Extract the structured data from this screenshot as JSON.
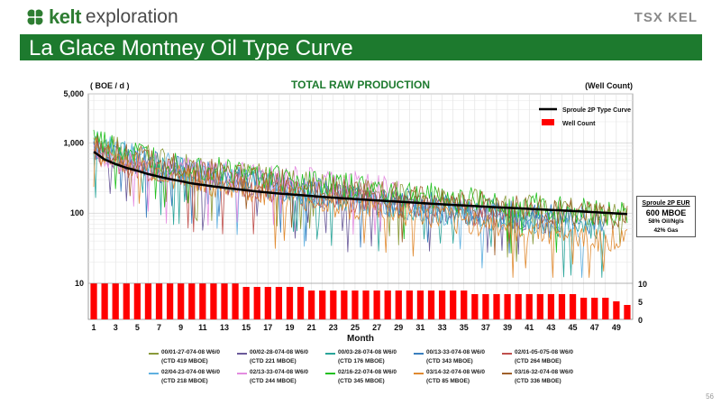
{
  "header": {
    "logo_name": "kelt",
    "logo_sub": "exploration",
    "exchange": "TSX KEL",
    "title": "La Glace Montney Oil Type Curve"
  },
  "page_number": "56",
  "colors": {
    "brand_green": "#1d7a2e",
    "type_curve": "#000000",
    "well_count": "#ff0000"
  },
  "eur_box": {
    "heading": "Sproule 2P EUR",
    "value": "600 MBOE",
    "oil": "58% Oil/Ngls",
    "gas": "42% Gas"
  },
  "legend": [
    {
      "name": "00/01-27-074-08 W6/0",
      "ctd": "(CTD 419 MBOE)",
      "color": "#8a9a3a"
    },
    {
      "name": "00/02-28-074-08 W6/0",
      "ctd": "(CTD 221 MBOE)",
      "color": "#6a5a9a"
    },
    {
      "name": "00/03-28-074-08 W6/0",
      "ctd": "(CTD 176 MBOE)",
      "color": "#2aa59a"
    },
    {
      "name": "00/13-33-074-08 W6/0",
      "ctd": "(CTD 343 MBOE)",
      "color": "#3a7fbf"
    },
    {
      "name": "02/01-05-075-08 W6/0",
      "ctd": "(CTD 264 MBOE)",
      "color": "#c0504d"
    },
    {
      "name": "02/04-23-074-08 W6/0",
      "ctd": "(CTD 218 MBOE)",
      "color": "#5fb0e0"
    },
    {
      "name": "02/13-33-074-08 W6/0",
      "ctd": "(CTD 244 MBOE)",
      "color": "#e48ce0"
    },
    {
      "name": "02/16-22-074-08 W6/0",
      "ctd": "(CTD 345 MBOE)",
      "color": "#22c020"
    },
    {
      "name": "03/14-32-074-08 W6/0",
      "ctd": "(CTD 85 MBOE)",
      "color": "#e08a30"
    },
    {
      "name": "03/16-32-074-08 W6/0",
      "ctd": "(CTD 336 MBOE)",
      "color": "#a0602a"
    }
  ],
  "chart_data": {
    "type": "line",
    "title": "TOTAL RAW PRODUCTION",
    "ylabel": "( BOE / d )",
    "y2label": "(Well Count)",
    "xlabel": "Month",
    "y_scale": "log",
    "ylim": [
      10,
      5000
    ],
    "y_ticks": [
      "5,000",
      "1,000",
      "100",
      "10"
    ],
    "y_tick_values": [
      5000,
      1000,
      100,
      10
    ],
    "y2_ticks": [
      "10",
      "5",
      "0"
    ],
    "y2_tick_values": [
      10,
      5,
      0
    ],
    "y2lim": [
      0,
      10
    ],
    "xlim": [
      1,
      50
    ],
    "x_ticks": [
      "1",
      "3",
      "5",
      "7",
      "9",
      "11",
      "13",
      "15",
      "17",
      "19",
      "21",
      "23",
      "25",
      "27",
      "29",
      "31",
      "33",
      "35",
      "37",
      "39",
      "41",
      "43",
      "45",
      "47",
      "49"
    ],
    "x_tick_values": [
      1,
      3,
      5,
      7,
      9,
      11,
      13,
      15,
      17,
      19,
      21,
      23,
      25,
      27,
      29,
      31,
      33,
      35,
      37,
      39,
      41,
      43,
      45,
      47,
      49
    ],
    "grid": true,
    "legend_position": "top-right",
    "legend_entries": [
      "Sproule 2P Type Curve",
      "Well Count"
    ],
    "well_count": {
      "name": "Well Count",
      "x": [
        1,
        2,
        3,
        4,
        5,
        6,
        7,
        8,
        9,
        10,
        11,
        12,
        13,
        14,
        15,
        16,
        17,
        18,
        19,
        20,
        21,
        22,
        23,
        24,
        25,
        26,
        27,
        28,
        29,
        30,
        31,
        32,
        33,
        34,
        35,
        36,
        37,
        38,
        39,
        40,
        41,
        42,
        43,
        44,
        45,
        46,
        47,
        48,
        49,
        50
      ],
      "values": [
        10,
        10,
        10,
        10,
        10,
        10,
        10,
        10,
        10,
        10,
        10,
        10,
        10,
        10,
        9,
        9,
        9,
        9,
        9,
        9,
        8,
        8,
        8,
        8,
        8,
        8,
        8,
        8,
        8,
        8,
        8,
        8,
        8,
        8,
        8,
        7,
        7,
        7,
        7,
        7,
        7,
        7,
        7,
        7,
        7,
        6,
        6,
        6,
        5,
        4
      ]
    },
    "type_curve": {
      "name": "Sproule 2P Type Curve",
      "x": [
        1,
        2,
        3,
        4,
        5,
        6,
        7,
        8,
        9,
        10,
        12,
        14,
        16,
        18,
        20,
        22,
        24,
        26,
        28,
        30,
        32,
        34,
        36,
        38,
        40,
        42,
        44,
        46,
        48,
        50
      ],
      "values": [
        750,
        580,
        500,
        440,
        400,
        360,
        330,
        305,
        285,
        265,
        240,
        220,
        203,
        190,
        180,
        170,
        162,
        155,
        148,
        142,
        136,
        131,
        126,
        121,
        117,
        113,
        109,
        105,
        101,
        97
      ]
    }
  }
}
